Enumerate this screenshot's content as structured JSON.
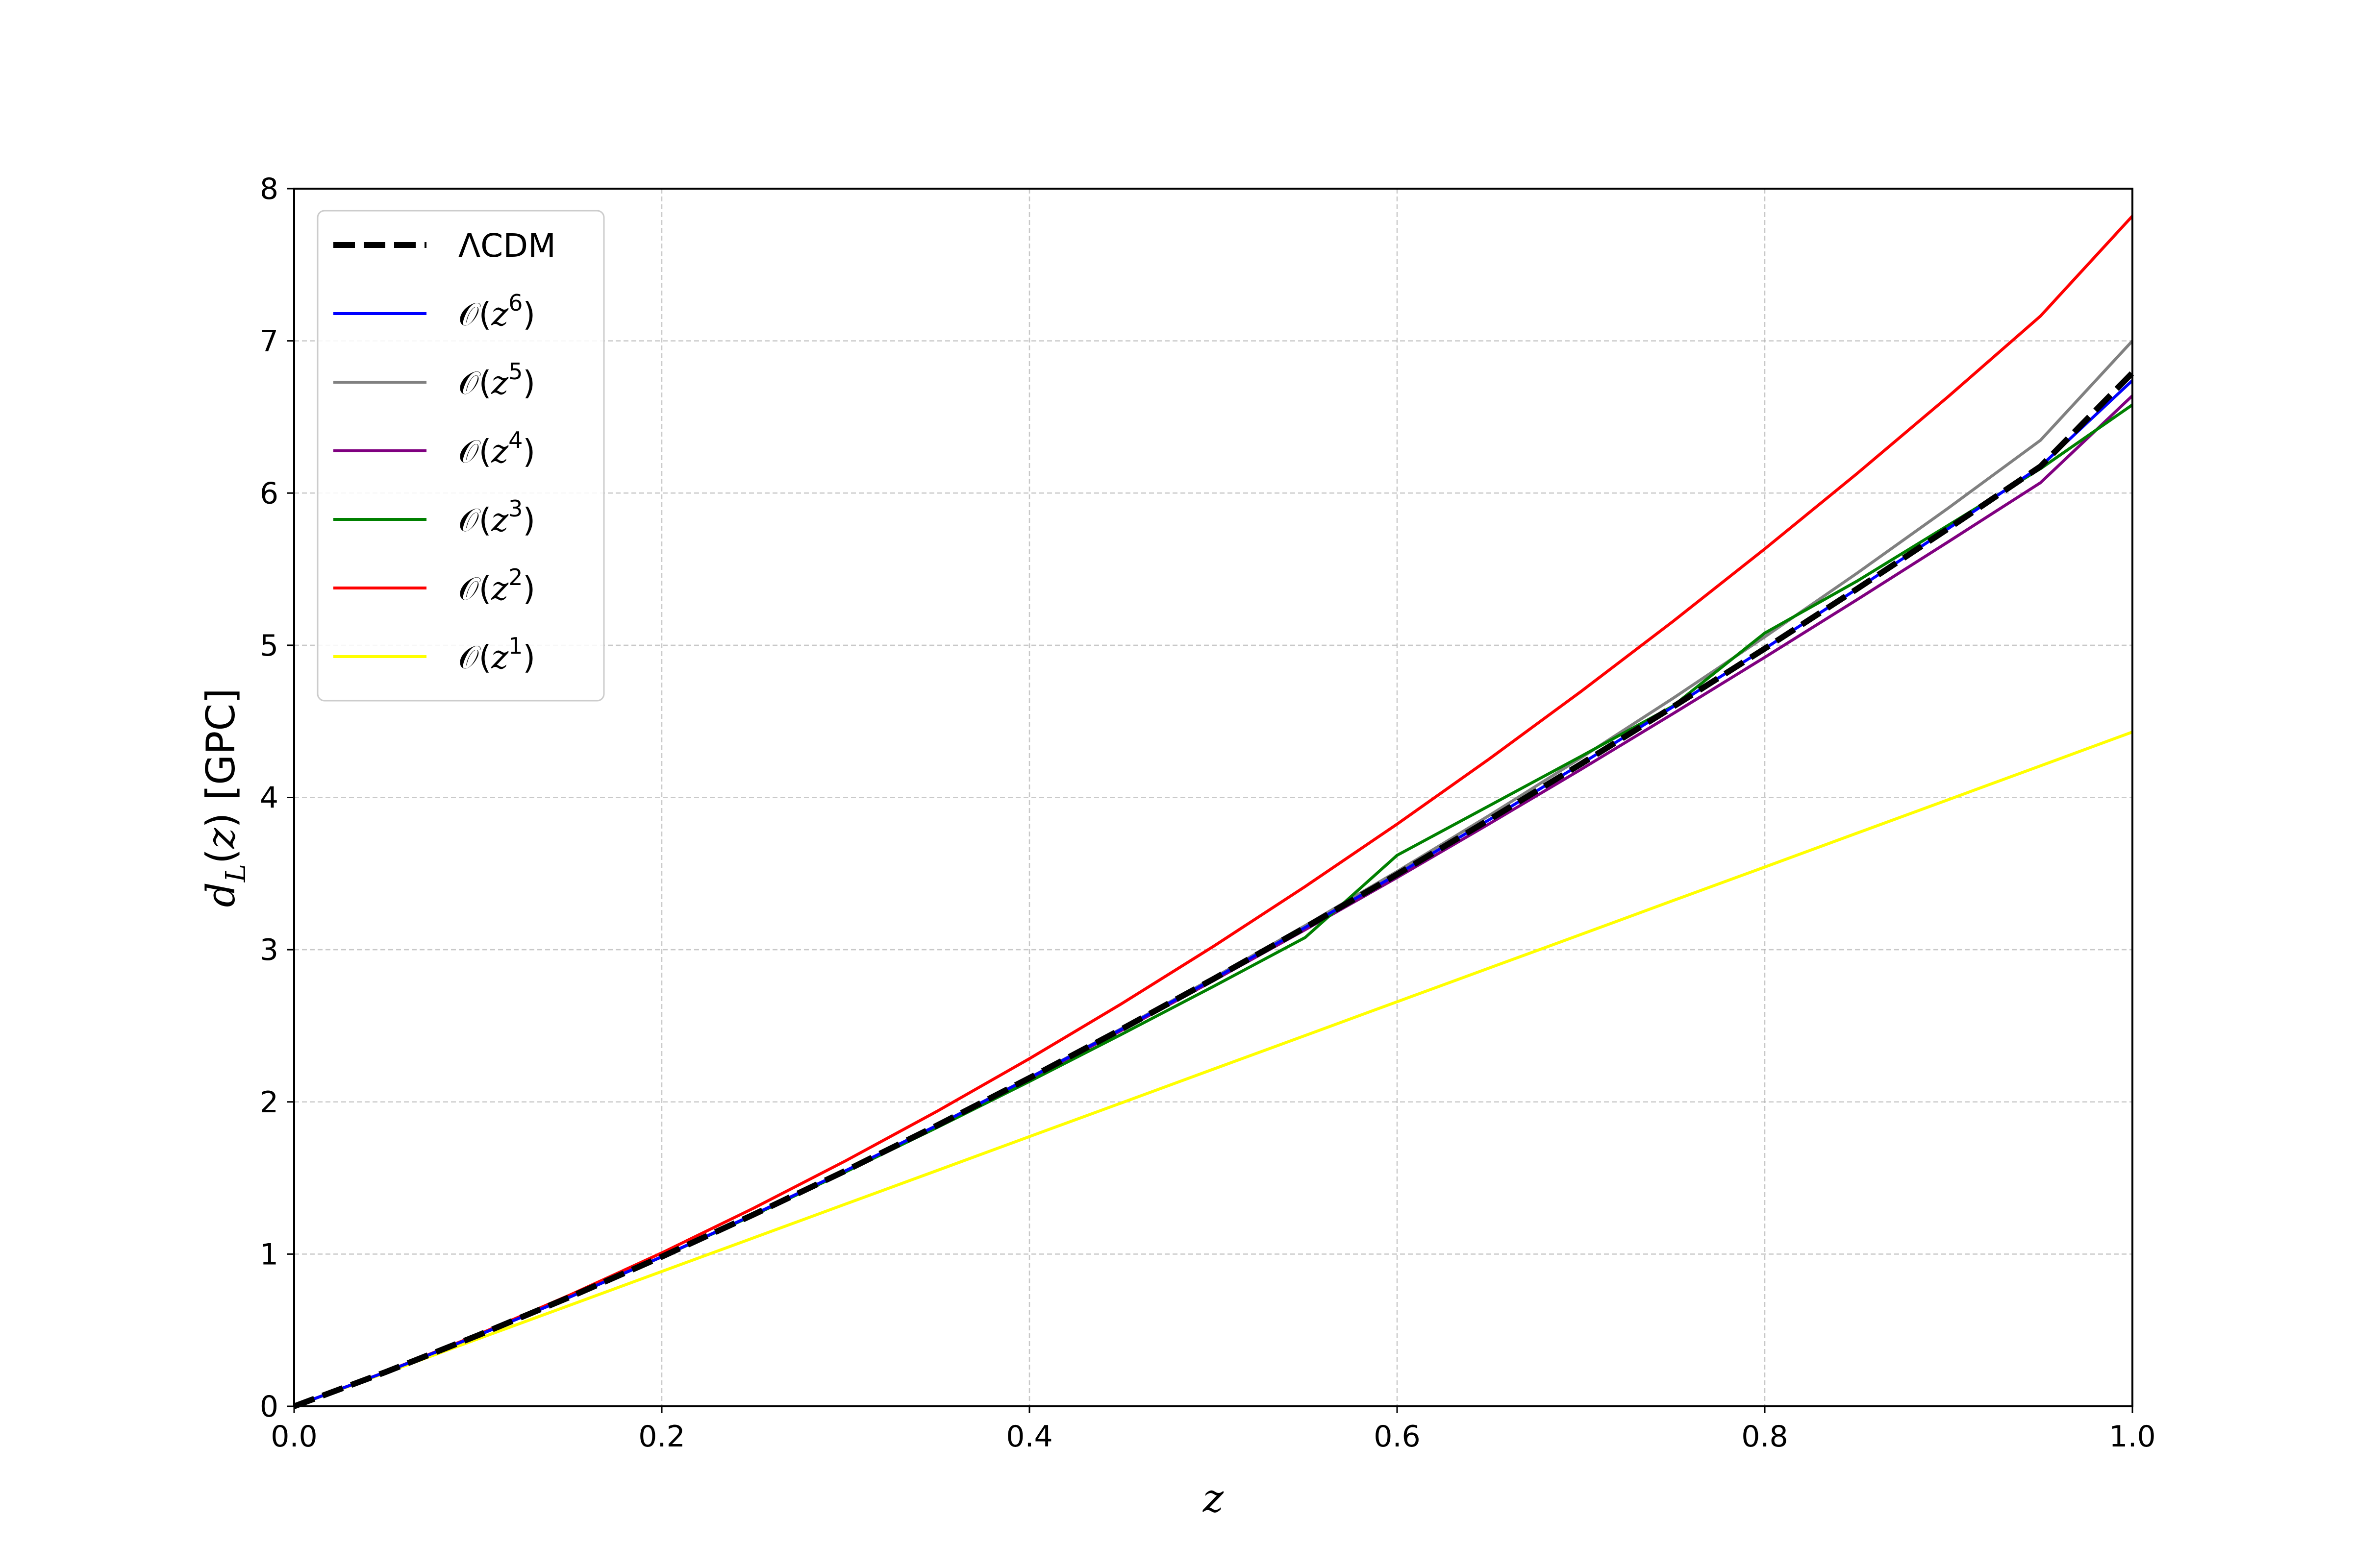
{
  "chart_data": {
    "type": "line",
    "xlabel": "z",
    "ylabel": "d_L(z) [GPC]",
    "xlim": [
      0.0,
      1.0
    ],
    "ylim": [
      0,
      8
    ],
    "xticks": [
      "0.0",
      "0.2",
      "0.4",
      "0.6",
      "0.8",
      "1.0"
    ],
    "yticks": [
      "0",
      "1",
      "2",
      "3",
      "4",
      "5",
      "6",
      "7",
      "8"
    ],
    "grid": true,
    "legend_position": "upper-left",
    "x": [
      0.0,
      0.05,
      0.1,
      0.15,
      0.2,
      0.25,
      0.3,
      0.35,
      0.4,
      0.45,
      0.5,
      0.55,
      0.6,
      0.65,
      0.7,
      0.75,
      0.8,
      0.85,
      0.9,
      0.95,
      1.0
    ],
    "series": [
      {
        "name": "ΛCDM",
        "color": "#000000",
        "style": "dashed",
        "values": [
          0.0,
          0.226,
          0.466,
          0.718,
          0.983,
          1.26,
          1.548,
          1.847,
          2.157,
          2.477,
          2.807,
          3.146,
          3.495,
          3.853,
          4.22,
          4.595,
          4.978,
          5.369,
          5.768,
          6.175,
          6.79
        ]
      },
      {
        "name": "O(z^6)",
        "color": "#0000ff",
        "style": "solid",
        "values": [
          0.0,
          0.226,
          0.466,
          0.718,
          0.983,
          1.26,
          1.548,
          1.847,
          2.157,
          2.477,
          2.807,
          3.146,
          3.495,
          3.853,
          4.22,
          4.595,
          4.978,
          5.369,
          5.768,
          6.175,
          6.74
        ]
      },
      {
        "name": "O(z^5)",
        "color": "#808080",
        "style": "solid",
        "values": [
          0.0,
          0.226,
          0.466,
          0.718,
          0.983,
          1.26,
          1.548,
          1.848,
          2.159,
          2.481,
          2.814,
          3.158,
          3.514,
          3.881,
          4.26,
          4.651,
          5.055,
          5.472,
          5.903,
          6.347,
          7.0
        ]
      },
      {
        "name": "O(z^4)",
        "color": "#800080",
        "style": "solid",
        "values": [
          0.0,
          0.226,
          0.466,
          0.718,
          0.982,
          1.258,
          1.545,
          1.843,
          2.151,
          2.469,
          2.796,
          3.131,
          3.474,
          3.826,
          4.184,
          4.55,
          4.921,
          5.298,
          5.681,
          6.068,
          6.64
        ]
      },
      {
        "name": "O(z^3)",
        "color": "#008000",
        "style": "solid",
        "values": [
          0.0,
          0.226,
          0.466,
          0.718,
          0.982,
          1.256,
          1.54,
          1.833,
          2.134,
          2.443,
          2.758,
          3.08,
          3.62,
          3.945,
          4.27,
          4.6,
          5.08,
          5.42,
          5.79,
          6.16,
          6.58
        ]
      },
      {
        "name": "O(z^2)",
        "color": "#ff0000",
        "style": "solid",
        "values": [
          0.0,
          0.227,
          0.471,
          0.731,
          1.008,
          1.302,
          1.613,
          1.94,
          2.284,
          2.644,
          3.021,
          3.415,
          3.825,
          4.252,
          4.696,
          5.156,
          5.633,
          6.126,
          6.636,
          7.163,
          7.82
        ]
      },
      {
        "name": "O(z^1)",
        "color": "#ffff00",
        "style": "solid",
        "values": [
          0.0,
          0.221,
          0.443,
          0.664,
          0.886,
          1.107,
          1.329,
          1.55,
          1.772,
          1.993,
          2.215,
          2.436,
          2.658,
          2.879,
          3.1,
          3.322,
          3.543,
          3.765,
          3.986,
          4.208,
          4.43
        ]
      }
    ],
    "legend": [
      {
        "text": "ΛCDM",
        "series": 0
      },
      {
        "prefix": "𝒪(",
        "var": "z",
        "sup": "6",
        "suffix": ")",
        "series": 1
      },
      {
        "prefix": "𝒪(",
        "var": "z",
        "sup": "5",
        "suffix": ")",
        "series": 2
      },
      {
        "prefix": "𝒪(",
        "var": "z",
        "sup": "4",
        "suffix": ")",
        "series": 3
      },
      {
        "prefix": "𝒪(",
        "var": "z",
        "sup": "3",
        "suffix": ")",
        "series": 4
      },
      {
        "prefix": "𝒪(",
        "var": "z",
        "sup": "2",
        "suffix": ")",
        "series": 5
      },
      {
        "prefix": "𝒪(",
        "var": "z",
        "sup": "1",
        "suffix": ")",
        "series": 6
      }
    ]
  }
}
